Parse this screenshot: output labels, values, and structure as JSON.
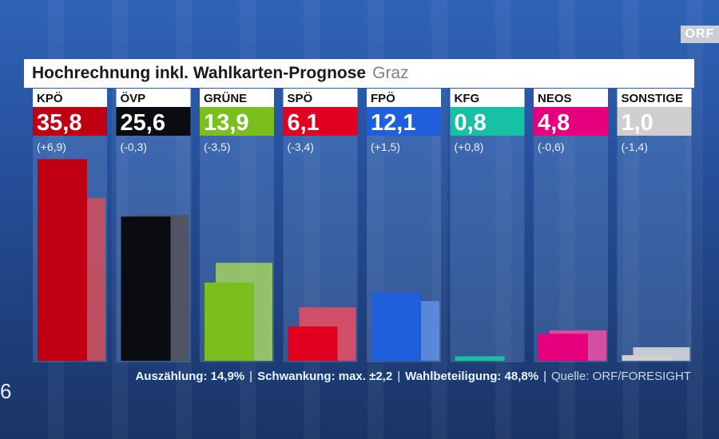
{
  "header": {
    "title": "Hochrechnung inkl. Wahlkarten-Prognose",
    "subtitle": "Graz"
  },
  "logo": {
    "text": "ORF"
  },
  "side_number": "6",
  "footer": {
    "counting": "Auszählung: 14,9%",
    "fluctuation": "Schwankung: max. ±2,2",
    "turnout": "Wahlbeteiligung: 48,8%",
    "separator": "|",
    "source": "Quelle: ORF/FORESIGHT"
  },
  "chart_data": {
    "type": "bar",
    "title": "Hochrechnung inkl. Wahlkarten-Prognose",
    "subtitle": "Graz",
    "categories": [
      "KPÖ",
      "ÖVP",
      "GRÜNE",
      "SPÖ",
      "FPÖ",
      "KFG",
      "NEOS",
      "SONSTIGE"
    ],
    "value_labels": [
      "35,8",
      "25,6",
      "13,9",
      "6,1",
      "12,1",
      "0,8",
      "4,8",
      "1,0"
    ],
    "change_labels": [
      "(+6,9)",
      "(-0,3)",
      "(-3,5)",
      "(-3,4)",
      "(+1,5)",
      "(+0,8)",
      "(-0,6)",
      "(-1,4)"
    ],
    "series": [
      {
        "values": [
          35.8,
          25.6,
          13.9,
          6.1,
          12.1,
          0.8,
          4.8,
          1.0
        ]
      },
      {
        "values": [
          28.9,
          25.9,
          17.4,
          9.5,
          10.6,
          0.0,
          5.4,
          2.4
        ]
      }
    ],
    "colors": [
      "#c00012",
      "#0b0b12",
      "#7bbf1f",
      "#e1001f",
      "#1f5fdb",
      "#17c2a4",
      "#e6007e",
      "#cfcfcf"
    ],
    "ylim": [
      0,
      40
    ]
  }
}
